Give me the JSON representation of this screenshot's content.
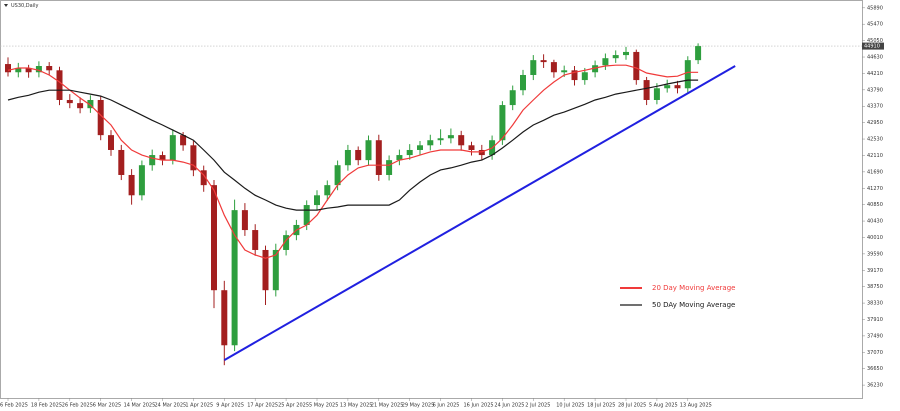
{
  "chart_data": {
    "type": "candlestick",
    "title": "US30,Daily",
    "categories": [
      "6 Feb 2025",
      null,
      null,
      "18 Feb 2025",
      null,
      null,
      "26 Feb 2025",
      null,
      null,
      "6 Mar 2025",
      null,
      null,
      "14 Mar 2025",
      null,
      null,
      "24 Mar 2025",
      null,
      null,
      "1 Apr 2025",
      null,
      null,
      "9 Apr 2025",
      null,
      null,
      "17 Apr 2025",
      null,
      null,
      "25 Apr 2025",
      null,
      null,
      "5 May 2025",
      null,
      null,
      "13 May 2025",
      null,
      null,
      "21 May 2025",
      null,
      null,
      "29 May 2025",
      null,
      null,
      "6 Jun 2025",
      null,
      null,
      "16 Jun 2025",
      null,
      null,
      "24 Jun 2025",
      null,
      null,
      "2 Jul 2025",
      null,
      null,
      "10 Jul 2025",
      null,
      null,
      "18 Jul 2025",
      null,
      null,
      "28 Jul 2025",
      null,
      null,
      "5 Aug 2025",
      null,
      null,
      "13 Aug 2025",
      null
    ],
    "open": [
      44450,
      44240,
      44350,
      44240,
      44400,
      44290,
      43530,
      43450,
      43320,
      43530,
      42630,
      42250,
      41610,
      41090,
      41860,
      42120,
      41990,
      42630,
      42370,
      41730,
      41350,
      38660,
      37250,
      40710,
      40200,
      39690,
      38660,
      39690,
      40070,
      40330,
      40840,
      41090,
      41350,
      41860,
      42250,
      41990,
      42500,
      41610,
      41990,
      42120,
      42250,
      42370,
      42500,
      42550,
      42630,
      42370,
      42250,
      42120,
      42500,
      43400,
      43780,
      44170,
      44550,
      44500,
      44240,
      44290,
      44040,
      44240,
      44420,
      44600,
      44680,
      44760,
      44040,
      43530,
      43830,
      43910,
      43830,
      44550
    ],
    "high": [
      44620,
      44480,
      44430,
      44520,
      44500,
      44380,
      43680,
      43600,
      43650,
      43620,
      42760,
      42380,
      41760,
      41980,
      42260,
      42210,
      42780,
      42710,
      42480,
      41850,
      41480,
      38900,
      40980,
      40890,
      40350,
      39800,
      39850,
      40190,
      40460,
      40960,
      41220,
      41470,
      41980,
      42380,
      42340,
      42620,
      42640,
      42110,
      42260,
      42400,
      42480,
      42640,
      42780,
      42800,
      42740,
      42460,
      42380,
      42620,
      43500,
      43900,
      44300,
      44680,
      44700,
      44560,
      44410,
      44400,
      44350,
      44540,
      44720,
      44800,
      44890,
      44820,
      44120,
      43960,
      44050,
      44020,
      44650,
      44980
    ],
    "low": [
      44130,
      44110,
      44100,
      44110,
      44160,
      43400,
      43320,
      43190,
      43200,
      42500,
      42100,
      41480,
      40850,
      40960,
      41720,
      41860,
      41880,
      42230,
      41580,
      41180,
      38200,
      36740,
      37100,
      40050,
      39540,
      38280,
      38500,
      39550,
      39940,
      40200,
      40700,
      40950,
      41220,
      41720,
      41860,
      41850,
      41460,
      41470,
      41860,
      42000,
      42120,
      42240,
      42380,
      42420,
      42230,
      42110,
      41980,
      42000,
      42380,
      43270,
      43650,
      44040,
      44350,
      44100,
      44120,
      43900,
      43920,
      44110,
      44300,
      44480,
      44560,
      43920,
      43400,
      43420,
      43720,
      43700,
      43720,
      44450
    ],
    "close": [
      44240,
      44350,
      44240,
      44400,
      44290,
      43530,
      43450,
      43320,
      43530,
      42630,
      42250,
      41610,
      41090,
      41860,
      42120,
      41990,
      42630,
      42370,
      41730,
      41350,
      38660,
      37250,
      40710,
      40200,
      39690,
      38660,
      39690,
      40070,
      40330,
      40840,
      41090,
      41350,
      41860,
      42250,
      41990,
      42500,
      41610,
      41990,
      42120,
      42250,
      42370,
      42500,
      42550,
      42630,
      42370,
      42250,
      42120,
      42500,
      43400,
      43780,
      44170,
      44550,
      44500,
      44240,
      44290,
      44040,
      44240,
      44420,
      44600,
      44680,
      44760,
      44040,
      43530,
      43830,
      43910,
      43830,
      44550,
      44910
    ],
    "up_color": "#2e9e3e",
    "down_color": "#a31f1f",
    "series": [
      {
        "name": "20 Day Moving Average",
        "color": "#f03a3a",
        "values": [
          44290,
          44350,
          44350,
          44290,
          44170,
          43990,
          43780,
          43580,
          43400,
          43140,
          42890,
          42500,
          42250,
          42120,
          42040,
          41990,
          41990,
          41940,
          41860,
          41610,
          41220,
          40580,
          40070,
          39690,
          39560,
          39480,
          39560,
          39940,
          40200,
          40330,
          40580,
          40970,
          41350,
          41610,
          41790,
          41860,
          41860,
          41860,
          41990,
          42040,
          42120,
          42200,
          42250,
          42250,
          42250,
          42200,
          42200,
          42300,
          42550,
          42890,
          43270,
          43530,
          43780,
          43990,
          44170,
          44240,
          44290,
          44350,
          44400,
          44420,
          44420,
          44350,
          44220,
          44170,
          44120,
          44140,
          44240,
          44240
        ]
      },
      {
        "name": "50 DAy Moving Average",
        "color": "#1a1a1a",
        "values": [
          43530,
          43600,
          43650,
          43730,
          43780,
          43780,
          43780,
          43730,
          43680,
          43630,
          43530,
          43400,
          43270,
          43140,
          43010,
          42890,
          42760,
          42630,
          42500,
          42250,
          41990,
          41680,
          41480,
          41270,
          41090,
          40970,
          40840,
          40760,
          40710,
          40710,
          40710,
          40760,
          40790,
          40840,
          40840,
          40840,
          40840,
          40840,
          40970,
          41220,
          41430,
          41610,
          41740,
          41790,
          41860,
          41940,
          41990,
          42120,
          42300,
          42500,
          42710,
          42890,
          43010,
          43140,
          43220,
          43320,
          43420,
          43530,
          43600,
          43680,
          43730,
          43780,
          43830,
          43880,
          43940,
          43990,
          44040,
          44040
        ]
      }
    ],
    "trendline": {
      "x": [
        21,
        70.6
      ],
      "y": [
        36870,
        44400
      ],
      "color": "#2020e0"
    },
    "last_price": 44910,
    "ylim": [
      35900,
      46090
    ],
    "yticks": [
      36230,
      36650,
      37070,
      37490,
      37910,
      38330,
      38750,
      39170,
      39590,
      40010,
      40430,
      40850,
      41270,
      41690,
      42110,
      42530,
      42950,
      43370,
      43790,
      44210,
      44630,
      45050,
      45470,
      45890
    ],
    "legend": "lower right"
  }
}
